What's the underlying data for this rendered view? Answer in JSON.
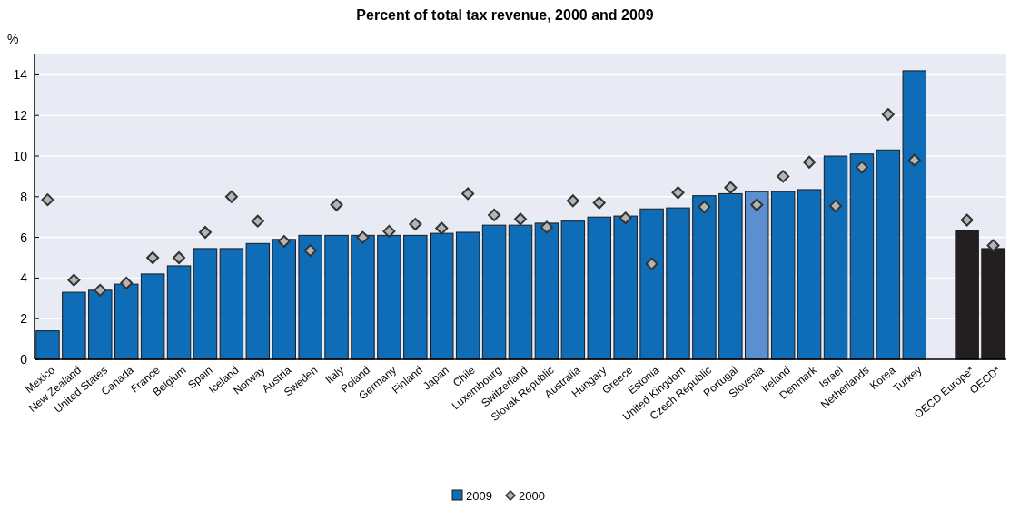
{
  "chart_data": {
    "type": "bar",
    "title": "Percent of total tax revenue, 2000 and 2009",
    "ylabel": "%",
    "categories": [
      "Mexico",
      "New Zealand",
      "United States",
      "Canada",
      "France",
      "Belgium",
      "Spain",
      "Iceland",
      "Norway",
      "Austria",
      "Sweden",
      "Italy",
      "Poland",
      "Germany",
      "Finland",
      "Japan",
      "Chile",
      "Luxembourg",
      "Switzerland",
      "Slovak Republic",
      "Australia",
      "Hungary",
      "Greece",
      "Estonia",
      "United Kingdom",
      "Czech Republic",
      "Portugal",
      "Slovenia",
      "Ireland",
      "Denmark",
      "Israel",
      "Netherlands",
      "Korea",
      "Turkey",
      null,
      "OECD Europe*",
      "OECD*"
    ],
    "series": [
      {
        "name": "2009",
        "color": "#0f6cb6",
        "colors": [
          "#0f6cb6",
          "#0f6cb6",
          "#0f6cb6",
          "#0f6cb6",
          "#0f6cb6",
          "#0f6cb6",
          "#0f6cb6",
          "#0f6cb6",
          "#0f6cb6",
          "#0f6cb6",
          "#0f6cb6",
          "#0f6cb6",
          "#0f6cb6",
          "#0f6cb6",
          "#0f6cb6",
          "#0f6cb6",
          "#0f6cb6",
          "#0f6cb6",
          "#0f6cb6",
          "#0f6cb6",
          "#0f6cb6",
          "#0f6cb6",
          "#0f6cb6",
          "#0f6cb6",
          "#0f6cb6",
          "#0f6cb6",
          "#0f6cb6",
          "#5b8fd0",
          "#0f6cb6",
          "#0f6cb6",
          "#0f6cb6",
          "#0f6cb6",
          "#0f6cb6",
          "#0f6cb6",
          null,
          "#231f20",
          "#231f20"
        ],
        "values": [
          1.4,
          3.3,
          3.4,
          3.7,
          4.2,
          4.6,
          5.45,
          5.45,
          5.7,
          5.9,
          6.1,
          6.1,
          6.1,
          6.1,
          6.1,
          6.2,
          6.25,
          6.6,
          6.6,
          6.7,
          6.8,
          7.0,
          7.05,
          7.4,
          7.45,
          8.05,
          8.15,
          8.25,
          8.25,
          8.35,
          10.0,
          10.1,
          10.3,
          14.2,
          null,
          6.35,
          5.45
        ]
      },
      {
        "name": "2000",
        "type": "scatter",
        "marker": "diamond",
        "color": "#b4b4b4",
        "values": [
          7.85,
          3.9,
          3.4,
          3.75,
          5.0,
          5.0,
          6.25,
          8.0,
          6.8,
          5.8,
          5.35,
          7.6,
          6.0,
          6.3,
          6.65,
          6.45,
          8.15,
          7.1,
          6.9,
          6.5,
          7.8,
          7.7,
          6.95,
          4.7,
          8.2,
          7.5,
          8.45,
          7.6,
          9.0,
          9.7,
          7.55,
          9.45,
          12.05,
          9.8,
          null,
          6.85,
          5.6
        ]
      }
    ],
    "ylim": [
      0,
      15
    ],
    "yticks": [
      0,
      2,
      4,
      6,
      8,
      10,
      12,
      14
    ],
    "grid": "y",
    "legend": "bottom"
  }
}
